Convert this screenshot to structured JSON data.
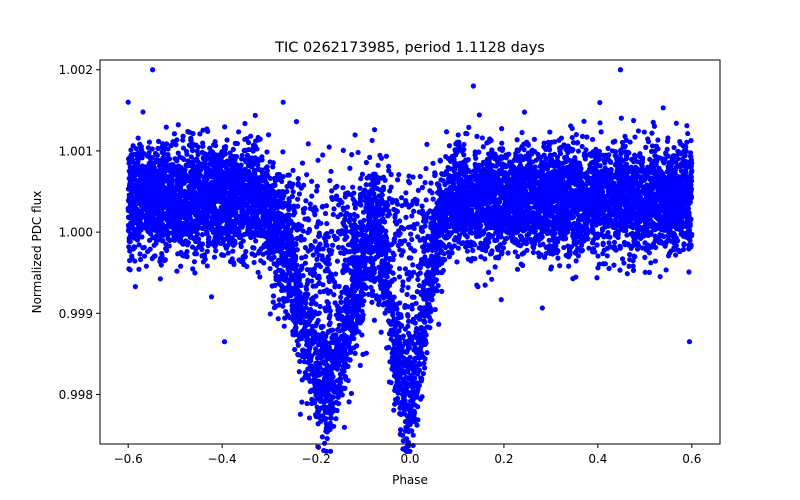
{
  "chart_data": {
    "type": "scatter",
    "title": "TIC 0262173985, period 1.1128 days",
    "xlabel": "Phase",
    "ylabel": "Normalized PDC flux",
    "xlim": [
      -0.66,
      0.66
    ],
    "ylim": [
      0.99739,
      1.00212
    ],
    "x_ticks": [
      -0.6,
      -0.4,
      -0.2,
      0.0,
      0.2,
      0.4,
      0.6
    ],
    "x_tick_labels": [
      "−0.6",
      "−0.4",
      "−0.2",
      "0.0",
      "0.2",
      "0.4",
      "0.6"
    ],
    "y_ticks": [
      0.998,
      0.999,
      1.0,
      1.001,
      1.002
    ],
    "y_tick_labels": [
      "0.998",
      "0.999",
      "1.000",
      "1.001",
      "1.002"
    ],
    "grid": false,
    "marker_color": "#0000ff",
    "series": [
      {
        "name": "PDC flux",
        "baseline": 1.0004,
        "baseline_scatter_sd": 0.00033,
        "phase_range": [
          -0.6,
          0.6
        ],
        "n_points": 9000,
        "primary_eclipse": {
          "center_phase": -0.18,
          "depth": 0.0023,
          "half_width": 0.12,
          "min_flux": 0.9975
        },
        "secondary_eclipse": {
          "center_phase": -0.005,
          "depth": 0.0025,
          "half_width": 0.075,
          "min_flux": 0.9975
        },
        "notable_points": [
          {
            "x": -0.548,
            "y": 1.002
          },
          {
            "x": 0.448,
            "y": 1.002
          },
          {
            "x": -0.195,
            "y": 0.99735
          },
          {
            "x": 0.595,
            "y": 0.99865
          },
          {
            "x": -0.395,
            "y": 0.99865
          },
          {
            "x": 0.135,
            "y": 1.0018
          },
          {
            "x": -0.27,
            "y": 1.0016
          },
          {
            "x": -0.6,
            "y": 1.0016
          }
        ]
      }
    ]
  }
}
